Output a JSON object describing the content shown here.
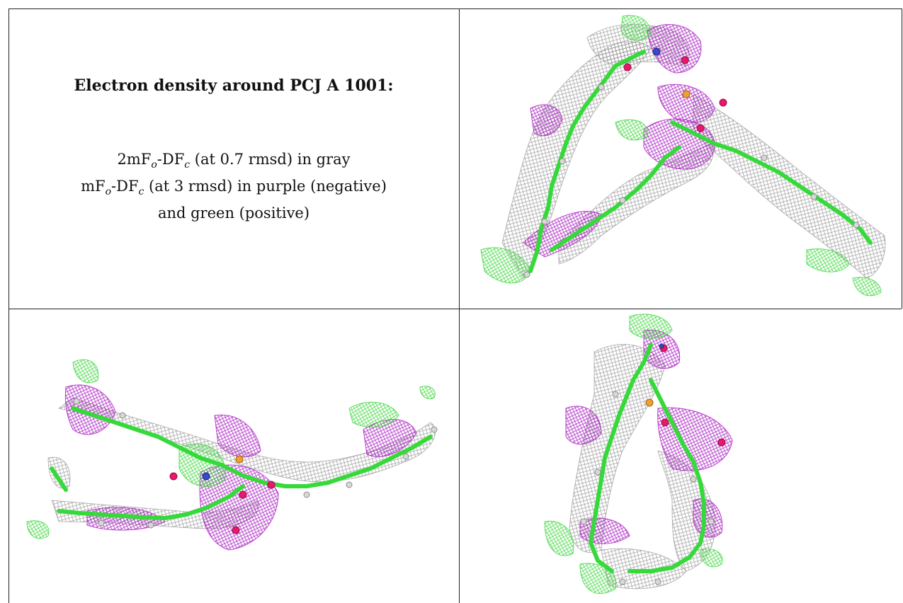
{
  "caption": {
    "title": "Electron density around PCJ A 1001:",
    "line1": {
      "prefix": "2mF",
      "sub1": "o",
      "mid": "-DF",
      "sub2": "c",
      "suffix": " (at 0.7 rmsd) in gray"
    },
    "line2": {
      "prefix": "mF",
      "sub1": "o",
      "mid": "-DF",
      "sub2": "c",
      "suffix": " (at 3 rmsd) in purple (negative)"
    },
    "line3": "and green (positive)"
  },
  "colors": {
    "map_2fofc": "#9a9a9a",
    "map_negative": "#b01cc4",
    "map_positive": "#3fd83f",
    "carbon": "#36d93a",
    "oxygen": "#e8196b",
    "nitrogen": "#3a48c9",
    "phosphorus": "#f0a030"
  },
  "views": [
    "view-1",
    "view-2",
    "view-3"
  ]
}
